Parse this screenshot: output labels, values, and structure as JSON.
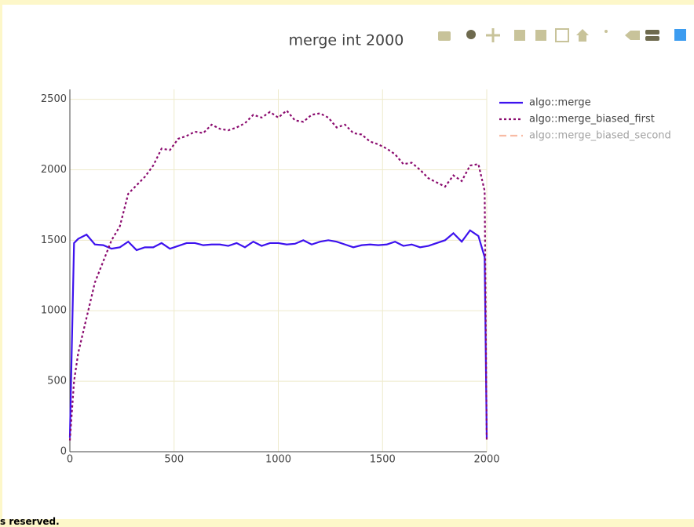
{
  "chart_data": {
    "type": "line",
    "title": "merge int 2000",
    "x": [
      0,
      20,
      40,
      80,
      120,
      160,
      200,
      240,
      280,
      320,
      360,
      400,
      440,
      480,
      520,
      560,
      600,
      640,
      680,
      720,
      760,
      800,
      840,
      880,
      920,
      960,
      1000,
      1040,
      1080,
      1120,
      1160,
      1200,
      1240,
      1280,
      1320,
      1360,
      1400,
      1440,
      1480,
      1520,
      1560,
      1600,
      1640,
      1680,
      1720,
      1760,
      1800,
      1840,
      1880,
      1920,
      1960,
      1990,
      2000
    ],
    "series": [
      {
        "name": "algo::merge",
        "color": "#3d12ee",
        "dash": "solid",
        "values": [
          100,
          1480,
          1510,
          1540,
          1470,
          1465,
          1440,
          1450,
          1490,
          1430,
          1450,
          1450,
          1480,
          1440,
          1460,
          1480,
          1480,
          1465,
          1470,
          1470,
          1460,
          1480,
          1450,
          1490,
          1460,
          1480,
          1480,
          1470,
          1475,
          1500,
          1470,
          1490,
          1500,
          1490,
          1470,
          1450,
          1465,
          1470,
          1465,
          1470,
          1490,
          1460,
          1470,
          1450,
          1460,
          1480,
          1500,
          1550,
          1490,
          1570,
          1530,
          1380,
          100
        ]
      },
      {
        "name": "algo::merge_biased_first",
        "color": "#8a0a6e",
        "dash": "dot",
        "values": [
          80,
          500,
          700,
          950,
          1200,
          1350,
          1500,
          1600,
          1830,
          1890,
          1950,
          2030,
          2150,
          2140,
          2220,
          2240,
          2270,
          2260,
          2320,
          2290,
          2280,
          2300,
          2330,
          2390,
          2370,
          2410,
          2370,
          2420,
          2350,
          2340,
          2390,
          2400,
          2370,
          2300,
          2320,
          2260,
          2250,
          2200,
          2180,
          2150,
          2110,
          2040,
          2050,
          2000,
          1940,
          1910,
          1880,
          1960,
          1920,
          2030,
          2040,
          1850,
          80
        ]
      },
      {
        "name": "algo::merge_biased_second",
        "color": "#f27a4b",
        "dash": "dash",
        "visible": "legendonly"
      }
    ],
    "xlim": [
      0,
      2000
    ],
    "xticks": [
      0,
      500,
      1000,
      1500,
      2000
    ],
    "ylim": [
      0,
      2570
    ],
    "yticks": [
      0,
      500,
      1000,
      1500,
      2000,
      2500
    ],
    "grid": true,
    "legend": "top-right"
  },
  "footer_text": "s reserved."
}
